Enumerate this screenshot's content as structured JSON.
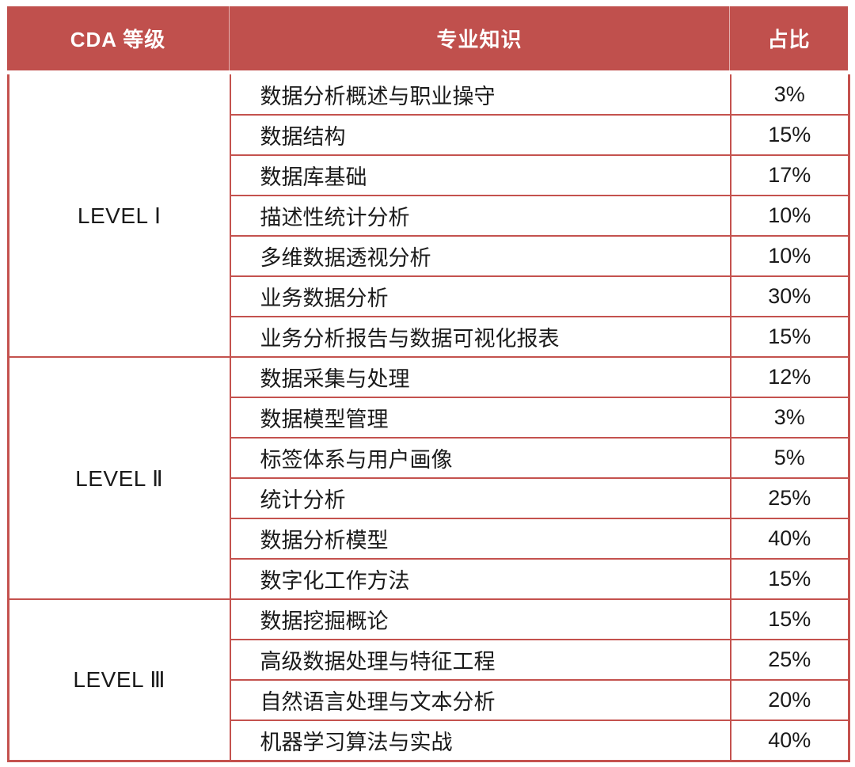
{
  "colors": {
    "header_bg": "#c0504d",
    "border": "#c4524e",
    "header_text": "#ffffff",
    "body_text": "#1a1a1a",
    "page_bg": "#ffffff"
  },
  "table": {
    "headers": {
      "level": "CDA 等级",
      "knowledge": "专业知识",
      "share": "占比"
    },
    "sections": [
      {
        "level": "LEVEL Ⅰ",
        "rows": [
          {
            "subject": "数据分析概述与职业操守",
            "share": "3%"
          },
          {
            "subject": "数据结构",
            "share": "15%"
          },
          {
            "subject": "数据库基础",
            "share": "17%"
          },
          {
            "subject": "描述性统计分析",
            "share": "10%"
          },
          {
            "subject": "多维数据透视分析",
            "share": "10%"
          },
          {
            "subject": "业务数据分析",
            "share": "30%"
          },
          {
            "subject": "业务分析报告与数据可视化报表",
            "share": "15%"
          }
        ]
      },
      {
        "level": "LEVEL Ⅱ",
        "rows": [
          {
            "subject": "数据采集与处理",
            "share": "12%"
          },
          {
            "subject": "数据模型管理",
            "share": "3%"
          },
          {
            "subject": "标签体系与用户画像",
            "share": "5%"
          },
          {
            "subject": "统计分析",
            "share": "25%"
          },
          {
            "subject": "数据分析模型",
            "share": "40%"
          },
          {
            "subject": "数字化工作方法",
            "share": "15%"
          }
        ]
      },
      {
        "level": "LEVEL Ⅲ",
        "rows": [
          {
            "subject": "数据挖掘概论",
            "share": "15%"
          },
          {
            "subject": "高级数据处理与特征工程",
            "share": "25%"
          },
          {
            "subject": "自然语言处理与文本分析",
            "share": "20%"
          },
          {
            "subject": "机器学习算法与实战",
            "share": "40%"
          }
        ]
      }
    ]
  }
}
